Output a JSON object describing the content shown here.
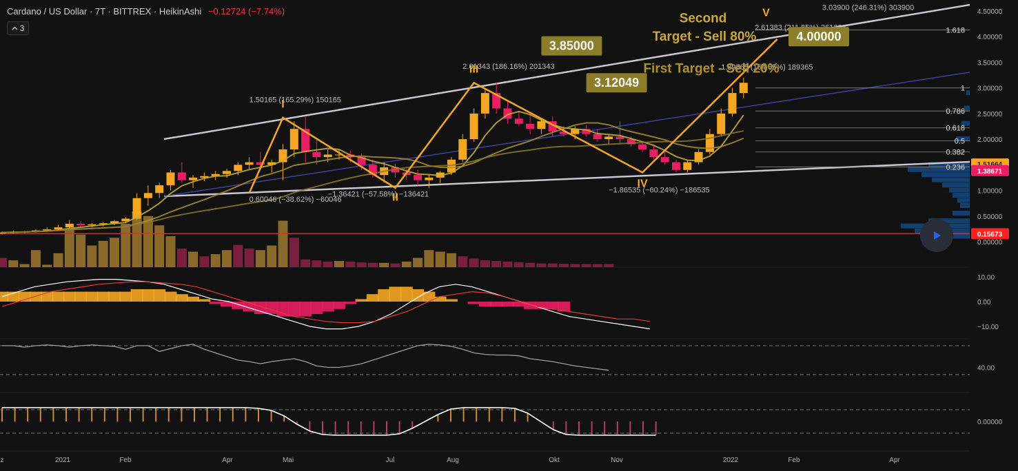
{
  "header": {
    "symbol_title": "Cardano / US Dollar · 7T · BITTREX · HeikinAshi",
    "change": "−0.12724 (−7.74%)"
  },
  "collapse_button": {
    "count": "3",
    "icon": "chevron-up-icon"
  },
  "play_button": {
    "icon": "play-icon"
  },
  "colors": {
    "background": "#121212",
    "up": "#f5a623",
    "down": "#e91e63",
    "up_volume": "#8a6a2a",
    "down_volume": "#7a1f3d",
    "pattern": "#f5a623",
    "channel": "#c8c8d0",
    "accent_line": "#ff2020",
    "label_box": "#8b7d2a"
  },
  "chart_data": [
    {
      "type": "candlestick",
      "style": "HeikinAshi",
      "xaxis": {
        "ticks": [
          "z",
          "2021",
          "Feb",
          "Apr",
          "Mai",
          "Jul",
          "Aug",
          "Okt",
          "Nov",
          "2022",
          "Feb",
          "Apr"
        ]
      },
      "yaxis": {
        "ticks": [
          {
            "value": 4.5,
            "label": "4.50000"
          },
          {
            "value": 4.0,
            "label": "4.00000"
          },
          {
            "value": 3.5,
            "label": "3.50000"
          },
          {
            "value": 3.0,
            "label": "3.00000"
          },
          {
            "value": 2.5,
            "label": "2.50000"
          },
          {
            "value": 2.0,
            "label": "2.00000"
          },
          {
            "value": 1.5,
            "label": "1.50000"
          },
          {
            "value": 1.0,
            "label": "1.00000"
          },
          {
            "value": 0.5,
            "label": "0.50000"
          },
          {
            "value": 0.0,
            "label": "0.00000"
          }
        ],
        "price_badges": [
          {
            "value": 1.51664,
            "label": "1.51664",
            "color": "#f5a623"
          },
          {
            "value": 1.38671,
            "label": "1.38671",
            "color": "#e91e63"
          },
          {
            "value": 0.15673,
            "label": "0.15673",
            "color": "#ff2020"
          }
        ]
      },
      "candles": [
        {
          "o": 0.16,
          "h": 0.2,
          "l": 0.14,
          "c": 0.18
        },
        {
          "o": 0.18,
          "h": 0.22,
          "l": 0.16,
          "c": 0.19
        },
        {
          "o": 0.19,
          "h": 0.21,
          "l": 0.17,
          "c": 0.2
        },
        {
          "o": 0.2,
          "h": 0.24,
          "l": 0.18,
          "c": 0.22
        },
        {
          "o": 0.22,
          "h": 0.28,
          "l": 0.2,
          "c": 0.24
        },
        {
          "o": 0.24,
          "h": 0.33,
          "l": 0.22,
          "c": 0.28
        },
        {
          "o": 0.28,
          "h": 0.42,
          "l": 0.26,
          "c": 0.35
        },
        {
          "o": 0.35,
          "h": 0.4,
          "l": 0.28,
          "c": 0.32
        },
        {
          "o": 0.32,
          "h": 0.36,
          "l": 0.28,
          "c": 0.34
        },
        {
          "o": 0.34,
          "h": 0.38,
          "l": 0.3,
          "c": 0.36
        },
        {
          "o": 0.36,
          "h": 0.42,
          "l": 0.32,
          "c": 0.4
        },
        {
          "o": 0.4,
          "h": 0.48,
          "l": 0.36,
          "c": 0.45
        },
        {
          "o": 0.45,
          "h": 0.95,
          "l": 0.42,
          "c": 0.85
        },
        {
          "o": 0.85,
          "h": 1.1,
          "l": 0.7,
          "c": 0.95
        },
        {
          "o": 0.95,
          "h": 1.15,
          "l": 0.85,
          "c": 1.1
        },
        {
          "o": 1.1,
          "h": 1.4,
          "l": 1.0,
          "c": 1.35
        },
        {
          "o": 1.35,
          "h": 1.55,
          "l": 1.15,
          "c": 1.2
        },
        {
          "o": 1.2,
          "h": 1.3,
          "l": 1.05,
          "c": 1.25
        },
        {
          "o": 1.25,
          "h": 1.35,
          "l": 1.18,
          "c": 1.28
        },
        {
          "o": 1.28,
          "h": 1.38,
          "l": 1.2,
          "c": 1.32
        },
        {
          "o": 1.32,
          "h": 1.42,
          "l": 1.25,
          "c": 1.38
        },
        {
          "o": 1.38,
          "h": 1.55,
          "l": 1.3,
          "c": 1.5
        },
        {
          "o": 1.5,
          "h": 1.65,
          "l": 1.42,
          "c": 1.55
        },
        {
          "o": 1.55,
          "h": 1.75,
          "l": 1.4,
          "c": 1.5
        },
        {
          "o": 1.5,
          "h": 1.6,
          "l": 1.35,
          "c": 1.55
        },
        {
          "o": 1.55,
          "h": 1.9,
          "l": 1.2,
          "c": 1.8
        },
        {
          "o": 1.8,
          "h": 2.35,
          "l": 1.65,
          "c": 2.2
        },
        {
          "o": 2.2,
          "h": 2.45,
          "l": 1.55,
          "c": 1.75
        },
        {
          "o": 1.75,
          "h": 2.0,
          "l": 1.5,
          "c": 1.65
        },
        {
          "o": 1.65,
          "h": 1.8,
          "l": 1.55,
          "c": 1.7
        },
        {
          "o": 1.7,
          "h": 1.8,
          "l": 1.6,
          "c": 1.7
        },
        {
          "o": 1.7,
          "h": 1.78,
          "l": 1.55,
          "c": 1.65
        },
        {
          "o": 1.65,
          "h": 1.72,
          "l": 1.4,
          "c": 1.5
        },
        {
          "o": 1.5,
          "h": 1.6,
          "l": 1.25,
          "c": 1.3
        },
        {
          "o": 1.3,
          "h": 1.55,
          "l": 1.15,
          "c": 1.45
        },
        {
          "o": 1.45,
          "h": 1.52,
          "l": 1.25,
          "c": 1.35
        },
        {
          "o": 1.35,
          "h": 1.42,
          "l": 1.2,
          "c": 1.3
        },
        {
          "o": 1.3,
          "h": 1.4,
          "l": 1.1,
          "c": 1.2
        },
        {
          "o": 1.2,
          "h": 1.3,
          "l": 1.05,
          "c": 1.25
        },
        {
          "o": 1.25,
          "h": 1.38,
          "l": 1.15,
          "c": 1.35
        },
        {
          "o": 1.35,
          "h": 1.65,
          "l": 1.3,
          "c": 1.6
        },
        {
          "o": 1.6,
          "h": 2.1,
          "l": 1.55,
          "c": 2.0
        },
        {
          "o": 2.0,
          "h": 2.6,
          "l": 1.95,
          "c": 2.5
        },
        {
          "o": 2.5,
          "h": 3.0,
          "l": 2.4,
          "c": 2.9
        },
        {
          "o": 2.9,
          "h": 3.1,
          "l": 2.5,
          "c": 2.6
        },
        {
          "o": 2.6,
          "h": 2.75,
          "l": 2.3,
          "c": 2.4
        },
        {
          "o": 2.4,
          "h": 2.55,
          "l": 2.25,
          "c": 2.3
        },
        {
          "o": 2.3,
          "h": 2.5,
          "l": 2.1,
          "c": 2.2
        },
        {
          "o": 2.2,
          "h": 2.4,
          "l": 2.1,
          "c": 2.35
        },
        {
          "o": 2.35,
          "h": 2.45,
          "l": 2.05,
          "c": 2.15
        },
        {
          "o": 2.15,
          "h": 2.25,
          "l": 2.05,
          "c": 2.1
        },
        {
          "o": 2.1,
          "h": 2.25,
          "l": 2.0,
          "c": 2.2
        },
        {
          "o": 2.2,
          "h": 2.28,
          "l": 2.05,
          "c": 2.1
        },
        {
          "o": 2.1,
          "h": 2.2,
          "l": 1.95,
          "c": 2.0
        },
        {
          "o": 2.0,
          "h": 2.1,
          "l": 1.9,
          "c": 2.05
        },
        {
          "o": 2.05,
          "h": 2.35,
          "l": 1.9,
          "c": 2.0
        },
        {
          "o": 2.0,
          "h": 2.05,
          "l": 1.85,
          "c": 1.9
        },
        {
          "o": 1.9,
          "h": 1.95,
          "l": 1.75,
          "c": 1.8
        },
        {
          "o": 1.8,
          "h": 1.9,
          "l": 1.6,
          "c": 1.65
        },
        {
          "o": 1.65,
          "h": 1.75,
          "l": 1.5,
          "c": 1.55
        },
        {
          "o": 1.55,
          "h": 1.6,
          "l": 1.35,
          "c": 1.4
        },
        {
          "o": 1.4,
          "h": 1.6,
          "l": 1.35,
          "c": 1.55
        },
        {
          "o": 1.55,
          "h": 1.8,
          "l": 1.5,
          "c": 1.75
        },
        {
          "o": 1.75,
          "h": 2.2,
          "l": 1.7,
          "c": 2.1
        },
        {
          "o": 2.1,
          "h": 2.6,
          "l": 2.05,
          "c": 2.5
        },
        {
          "o": 2.5,
          "h": 3.0,
          "l": 2.45,
          "c": 2.9
        },
        {
          "o": 2.9,
          "h": 3.2,
          "l": 2.8,
          "c": 3.1
        }
      ],
      "volume": [
        {
          "v": 0.3,
          "up": false
        },
        {
          "v": 0.22,
          "up": true
        },
        {
          "v": 0.1,
          "up": true
        },
        {
          "v": 0.55,
          "up": true
        },
        {
          "v": 0.08,
          "up": true
        },
        {
          "v": 0.45,
          "up": true
        },
        {
          "v": 1.2,
          "up": true
        },
        {
          "v": 1.05,
          "up": true
        },
        {
          "v": 0.7,
          "up": true
        },
        {
          "v": 0.85,
          "up": true
        },
        {
          "v": 0.95,
          "up": true
        },
        {
          "v": 1.4,
          "up": true
        },
        {
          "v": 1.8,
          "up": true
        },
        {
          "v": 1.65,
          "up": true
        },
        {
          "v": 1.35,
          "up": true
        },
        {
          "v": 1.0,
          "up": true
        },
        {
          "v": 0.6,
          "up": false
        },
        {
          "v": 0.5,
          "up": true
        },
        {
          "v": 0.35,
          "up": false
        },
        {
          "v": 0.42,
          "up": true
        },
        {
          "v": 0.55,
          "up": true
        },
        {
          "v": 0.72,
          "up": false
        },
        {
          "v": 0.6,
          "up": false
        },
        {
          "v": 0.55,
          "up": true
        },
        {
          "v": 0.7,
          "up": true
        },
        {
          "v": 1.5,
          "up": true
        },
        {
          "v": 0.95,
          "up": false
        },
        {
          "v": 0.25,
          "up": false
        },
        {
          "v": 0.22,
          "up": false
        },
        {
          "v": 0.18,
          "up": false
        },
        {
          "v": 0.2,
          "up": true
        },
        {
          "v": 0.18,
          "up": false
        },
        {
          "v": 0.15,
          "up": false
        },
        {
          "v": 0.14,
          "up": false
        },
        {
          "v": 0.14,
          "up": true
        },
        {
          "v": 0.12,
          "up": false
        },
        {
          "v": 0.18,
          "up": true
        },
        {
          "v": 0.3,
          "up": true
        },
        {
          "v": 0.55,
          "up": true
        },
        {
          "v": 0.5,
          "up": true
        },
        {
          "v": 0.45,
          "up": true
        },
        {
          "v": 0.35,
          "up": false
        },
        {
          "v": 0.28,
          "up": false
        },
        {
          "v": 0.22,
          "up": false
        },
        {
          "v": 0.2,
          "up": false
        },
        {
          "v": 0.18,
          "up": false
        },
        {
          "v": 0.16,
          "up": false
        },
        {
          "v": 0.14,
          "up": false
        },
        {
          "v": 0.12,
          "up": false
        },
        {
          "v": 0.12,
          "up": false
        },
        {
          "v": 0.11,
          "up": false
        },
        {
          "v": 0.1,
          "up": false
        },
        {
          "v": 0.1,
          "up": false
        },
        {
          "v": 0.1,
          "up": false
        },
        {
          "v": 0.1,
          "up": false
        }
      ],
      "pattern": {
        "points": [
          {
            "i": 22,
            "price": 0.95
          },
          {
            "i": 25,
            "price": 2.42
          },
          {
            "i": 35,
            "price": 1.05
          },
          {
            "i": 42,
            "price": 3.1
          },
          {
            "i": 57,
            "price": 1.35
          },
          {
            "i": 69,
            "price": 3.95
          }
        ],
        "wave_labels": [
          {
            "text": "I",
            "i": 25,
            "price": 2.62
          },
          {
            "text": "II",
            "i": 35,
            "price": 0.8
          },
          {
            "text": "III",
            "i": 42,
            "price": 3.3
          },
          {
            "text": "IV",
            "i": 57,
            "price": 1.07
          },
          {
            "text": "V",
            "i": 68,
            "price": 4.4
          }
        ]
      },
      "measurements": [
        {
          "text": "1.50165 (165.29%) 150165",
          "i": 22,
          "price": 2.72
        },
        {
          "text": "0.60046 (−38.62%) −60046",
          "i": 22,
          "price": 0.78
        },
        {
          "text": "−1.36421 (−57.58%) −136421",
          "i": 29,
          "price": 0.88
        },
        {
          "text": "2.01343 (186.16%) 201343",
          "i": 41,
          "price": 3.37
        },
        {
          "text": "−1.86535 (−60.24%) −186535",
          "i": 54,
          "price": 0.96
        },
        {
          "text": "1.89365 (164.65%) 189365",
          "i": 64,
          "price": 3.36
        },
        {
          "text": "2.61383 (211.85%) 261383",
          "i": 67,
          "price": 4.13
        },
        {
          "text": "3.03900 (246.31%) 303900",
          "i": 73,
          "price": 4.52
        }
      ],
      "target_boxes": [
        {
          "text": "3.85000",
          "i": 48,
          "price": 3.82
        },
        {
          "text": "3.12049",
          "i": 52,
          "price": 3.1
        },
        {
          "text": "4.00000",
          "i": 70,
          "price": 4.0
        }
      ],
      "annotations": [
        {
          "text": "Second",
          "price": 4.28
        },
        {
          "text": "Target - Sell 80%",
          "price": 4.0
        },
        {
          "text": "First Target - Sell 20%",
          "price": 3.35
        }
      ],
      "fib_levels": [
        {
          "label": "1.618",
          "value": 4.13
        },
        {
          "label": "1",
          "value": 3.0
        },
        {
          "label": "0.786",
          "value": 2.55
        },
        {
          "label": "0.618",
          "value": 2.22
        },
        {
          "label": "0.5",
          "value": 1.97
        },
        {
          "label": "0.382",
          "value": 1.75
        },
        {
          "label": "0.236",
          "value": 1.46
        }
      ]
    },
    {
      "type": "macd",
      "yaxis": {
        "ticks": [
          {
            "value": 10,
            "label": "10.00"
          },
          {
            "value": 0,
            "label": "0.00"
          },
          {
            "value": -10,
            "label": "−10.00"
          }
        ]
      },
      "histogram": [
        4,
        4,
        4,
        4,
        4,
        4,
        4,
        4,
        4,
        4,
        4,
        4,
        5,
        5,
        5,
        4,
        3,
        2,
        1,
        -1,
        -2,
        -3,
        -4,
        -5,
        -5,
        -6,
        -6,
        -6,
        -5,
        -4,
        -3,
        -1,
        1,
        3,
        5,
        6,
        6,
        5,
        4,
        2,
        1,
        0,
        -1,
        -2,
        -2,
        -2,
        -2,
        -3,
        -3,
        -3,
        -4
      ],
      "macd_line": [
        2,
        4,
        6,
        7,
        8,
        8.5,
        9,
        9,
        8.5,
        8,
        7,
        5,
        3,
        1,
        0,
        -2,
        -4,
        -6,
        -8,
        -10,
        -11,
        -11,
        -10,
        -8,
        -5,
        -1,
        3,
        6,
        7,
        6,
        4,
        2,
        0,
        -2,
        -4,
        -6,
        -7,
        -8,
        -9,
        -10,
        -11
      ],
      "signal_line": [
        -2,
        0,
        2,
        4,
        5,
        6,
        7,
        7.5,
        8,
        8,
        7.5,
        7,
        6,
        4,
        2,
        0,
        -2,
        -4,
        -6,
        -7,
        -8,
        -8.5,
        -8.5,
        -8,
        -6,
        -4,
        -1,
        2,
        3,
        4,
        3.5,
        2,
        0,
        -2,
        -3,
        -4,
        -5,
        -6,
        -7,
        -7,
        -8
      ]
    },
    {
      "type": "line",
      "yaxis": {
        "ticks": [
          {
            "value": 40,
            "label": "40.00"
          }
        ],
        "bands": [
          70,
          30
        ]
      },
      "values": [
        70,
        70,
        68,
        70,
        71,
        70,
        68,
        70,
        71,
        70,
        69,
        65,
        70,
        70,
        62,
        66,
        70,
        72,
        65,
        60,
        55,
        50,
        48,
        45,
        48,
        50,
        52,
        48,
        42,
        40,
        40,
        42,
        45,
        50,
        55,
        60,
        65,
        70,
        72,
        71,
        69,
        65,
        60,
        58,
        57,
        57,
        56,
        52,
        50,
        48,
        45,
        42,
        40,
        38,
        36
      ]
    },
    {
      "type": "oscillator",
      "yaxis": {
        "ticks": [
          {
            "value": 0,
            "label": "0.00000"
          }
        ]
      },
      "values": [
        1,
        1,
        1,
        1,
        1,
        1,
        1,
        1,
        1,
        1,
        1,
        1,
        1,
        1,
        1,
        1,
        1,
        1,
        1,
        1,
        0.95,
        0.8,
        0.4,
        -0.2,
        -0.7,
        -0.95,
        -1,
        -1,
        -1,
        -1,
        -1,
        -0.9,
        -0.5,
        0,
        0.5,
        0.9,
        1,
        1,
        1,
        1,
        0.95,
        0.6,
        0,
        -0.6,
        -0.95,
        -1,
        -1,
        -1,
        -1,
        -1,
        -1,
        -1
      ]
    }
  ]
}
